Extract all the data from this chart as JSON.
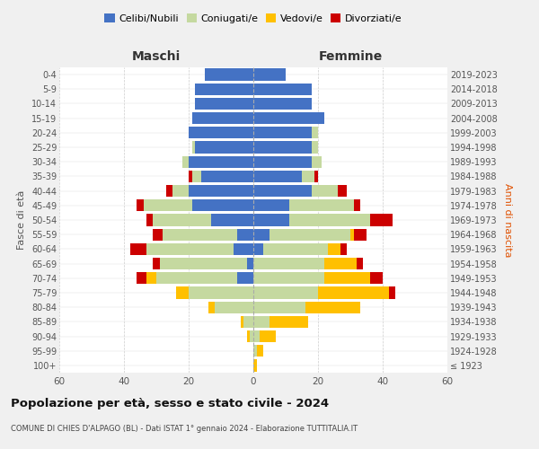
{
  "age_groups": [
    "100+",
    "95-99",
    "90-94",
    "85-89",
    "80-84",
    "75-79",
    "70-74",
    "65-69",
    "60-64",
    "55-59",
    "50-54",
    "45-49",
    "40-44",
    "35-39",
    "30-34",
    "25-29",
    "20-24",
    "15-19",
    "10-14",
    "5-9",
    "0-4"
  ],
  "birth_years": [
    "≤ 1923",
    "1924-1928",
    "1929-1933",
    "1934-1938",
    "1939-1943",
    "1944-1948",
    "1949-1953",
    "1954-1958",
    "1959-1963",
    "1964-1968",
    "1969-1973",
    "1974-1978",
    "1979-1983",
    "1984-1988",
    "1989-1993",
    "1994-1998",
    "1999-2003",
    "2004-2008",
    "2009-2013",
    "2014-2018",
    "2019-2023"
  ],
  "male": {
    "celibi": [
      0,
      0,
      0,
      0,
      0,
      0,
      5,
      2,
      6,
      5,
      13,
      19,
      20,
      16,
      20,
      18,
      20,
      19,
      18,
      18,
      15
    ],
    "coniugati": [
      0,
      0,
      1,
      3,
      12,
      20,
      25,
      27,
      27,
      23,
      18,
      15,
      5,
      3,
      2,
      1,
      0,
      0,
      0,
      0,
      0
    ],
    "vedovi": [
      0,
      0,
      1,
      1,
      2,
      4,
      3,
      0,
      0,
      0,
      0,
      0,
      0,
      0,
      0,
      0,
      0,
      0,
      0,
      0,
      0
    ],
    "divorziati": [
      0,
      0,
      0,
      0,
      0,
      0,
      3,
      2,
      5,
      3,
      2,
      2,
      2,
      1,
      0,
      0,
      0,
      0,
      0,
      0,
      0
    ]
  },
  "female": {
    "nubili": [
      0,
      0,
      0,
      0,
      0,
      0,
      0,
      0,
      3,
      5,
      11,
      11,
      18,
      15,
      18,
      18,
      18,
      22,
      18,
      18,
      10
    ],
    "coniugate": [
      0,
      1,
      2,
      5,
      16,
      20,
      22,
      22,
      20,
      25,
      25,
      20,
      8,
      4,
      3,
      2,
      2,
      0,
      0,
      0,
      0
    ],
    "vedove": [
      1,
      2,
      5,
      12,
      17,
      22,
      14,
      10,
      4,
      1,
      0,
      0,
      0,
      0,
      0,
      0,
      0,
      0,
      0,
      0,
      0
    ],
    "divorziate": [
      0,
      0,
      0,
      0,
      0,
      2,
      4,
      2,
      2,
      4,
      7,
      2,
      3,
      1,
      0,
      0,
      0,
      0,
      0,
      0,
      0
    ]
  },
  "colors": {
    "celibi": "#4472c4",
    "coniugati": "#c5d9a0",
    "vedovi": "#ffc000",
    "divorziati": "#cc0000"
  },
  "xlim": 60,
  "title": "Popolazione per età, sesso e stato civile - 2024",
  "subtitle": "COMUNE DI CHIES D'ALPAGO (BL) - Dati ISTAT 1° gennaio 2024 - Elaborazione TUTTITALIA.IT",
  "legend_labels": [
    "Celibi/Nubili",
    "Coniugati/e",
    "Vedovi/e",
    "Divorziati/e"
  ],
  "background_color": "#f0f0f0",
  "plot_background": "#ffffff"
}
